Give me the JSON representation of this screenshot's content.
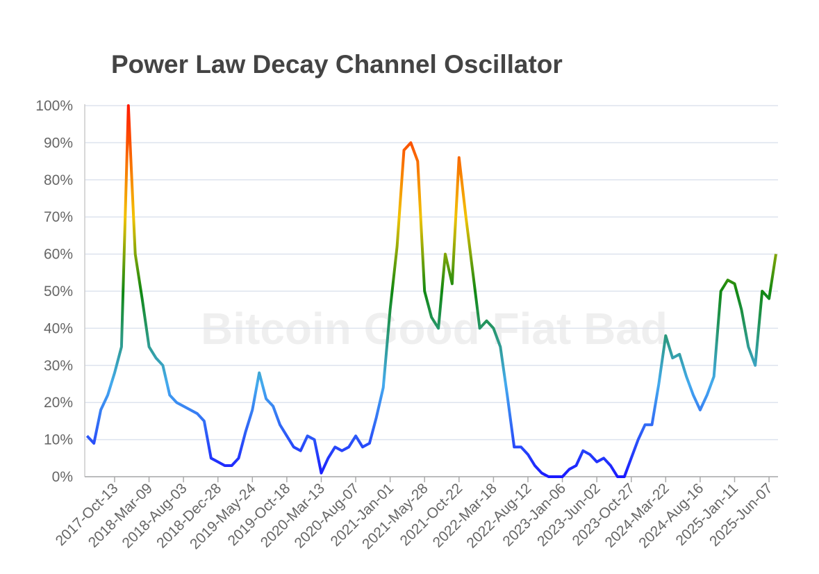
{
  "chart_data": {
    "type": "line",
    "title": "Power Law Decay Channel Oscillator",
    "watermark": "Bitcoin Good Fiat Bad",
    "categories": [
      null,
      null,
      null,
      null,
      "2017-Oct-13",
      null,
      null,
      null,
      null,
      "2018-Mar-09",
      null,
      null,
      null,
      null,
      "2018-Aug-03",
      null,
      null,
      null,
      null,
      "2018-Dec-28",
      null,
      null,
      null,
      null,
      "2019-May-24",
      null,
      null,
      null,
      null,
      "2019-Oct-18",
      null,
      null,
      null,
      null,
      "2020-Mar-13",
      null,
      null,
      null,
      null,
      "2020-Aug-07",
      null,
      null,
      null,
      null,
      "2021-Jan-01",
      null,
      null,
      null,
      null,
      "2021-May-28",
      null,
      null,
      null,
      null,
      "2021-Oct-22",
      null,
      null,
      null,
      null,
      "2022-Mar-18",
      null,
      null,
      null,
      null,
      "2022-Aug-12",
      null,
      null,
      null,
      null,
      "2023-Jan-06",
      null,
      null,
      null,
      null,
      "2023-Jun-02",
      null,
      null,
      null,
      null,
      "2023-Oct-27",
      null,
      null,
      null,
      null,
      "2024-Mar-22",
      null,
      null,
      null,
      null,
      "2024-Aug-16",
      null,
      null,
      null,
      null,
      "2025-Jan-11",
      null,
      null,
      null,
      null,
      "2025-Jun-07",
      null
    ],
    "series": [
      {
        "values": [
          11,
          9,
          18,
          22,
          28,
          35,
          100,
          60,
          48,
          35,
          32,
          30,
          22,
          20,
          19,
          18,
          17,
          15,
          5,
          4,
          3,
          3,
          5,
          12,
          18,
          28,
          21,
          19,
          14,
          11,
          8,
          7,
          11,
          10,
          1,
          5,
          8,
          7,
          8,
          11,
          8,
          9,
          16,
          24,
          45,
          62,
          88,
          90,
          85,
          50,
          43,
          40,
          60,
          52,
          86,
          70,
          55,
          40,
          42,
          40,
          35,
          22,
          8,
          8,
          6,
          3,
          1,
          0,
          0,
          0,
          2,
          3,
          7,
          6,
          4,
          5,
          3,
          0,
          0,
          5,
          10,
          14,
          14,
          25,
          38,
          32,
          33,
          27,
          22,
          18,
          22,
          27,
          50,
          53,
          52,
          45,
          35,
          30,
          50,
          48,
          60
        ]
      }
    ],
    "colorscale": [
      [
        0,
        "#1a1aff"
      ],
      [
        25,
        "#44aaee"
      ],
      [
        50,
        "#118811"
      ],
      [
        70,
        "#f2c200"
      ],
      [
        100,
        "#ff1a00"
      ]
    ],
    "ylim": [
      0,
      100
    ],
    "yticks": [
      {
        "value": 0,
        "label": "0%"
      },
      {
        "value": 10,
        "label": "10%"
      },
      {
        "value": 20,
        "label": "20%"
      },
      {
        "value": 30,
        "label": "30%"
      },
      {
        "value": 40,
        "label": "40%"
      },
      {
        "value": 50,
        "label": "50%"
      },
      {
        "value": 60,
        "label": "60%"
      },
      {
        "value": 70,
        "label": "70%"
      },
      {
        "value": 80,
        "label": "80%"
      },
      {
        "value": 90,
        "label": "90%"
      },
      {
        "value": 100,
        "label": "100%"
      }
    ],
    "grid": true
  }
}
